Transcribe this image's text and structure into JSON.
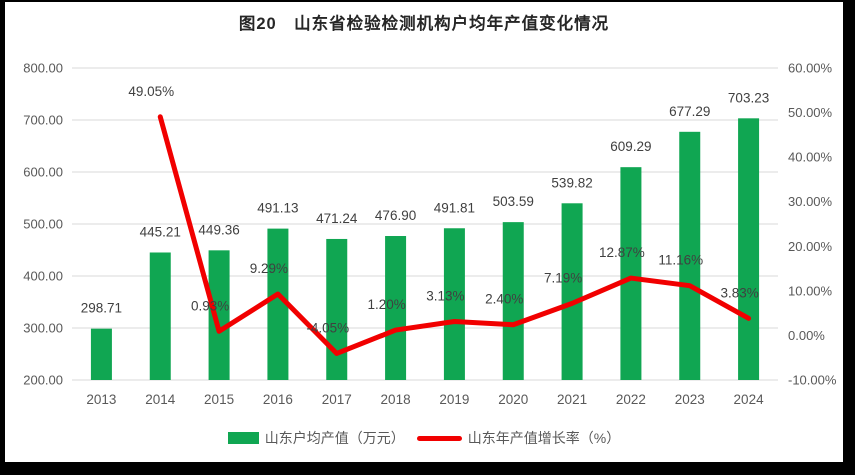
{
  "title": "图20　山东省检验检测机构户均年产值变化情况",
  "colors": {
    "background": "#000000",
    "panel": "#ffffff",
    "bar": "#10a652",
    "line": "#f10000",
    "grid": "#d9d9d9",
    "axis_text": "#595959",
    "data_label_text": "#404040",
    "title_text": "#262626"
  },
  "chart_data": {
    "type": "bar+line",
    "title": "图20　山东省检验检测机构户均年产值变化情况",
    "categories": [
      "2013",
      "2014",
      "2015",
      "2016",
      "2017",
      "2018",
      "2019",
      "2020",
      "2021",
      "2022",
      "2023",
      "2024"
    ],
    "series": [
      {
        "name": "山东户均产值（万元）",
        "type": "bar",
        "axis": "left",
        "color": "#10a652",
        "values": [
          298.71,
          445.21,
          449.36,
          491.13,
          471.24,
          476.9,
          491.81,
          503.59,
          539.82,
          609.29,
          677.29,
          703.23
        ],
        "labels": [
          "298.71",
          "445.21",
          "449.36",
          "491.13",
          "471.24",
          "476.90",
          "491.81",
          "503.59",
          "539.82",
          "609.29",
          "677.29",
          "703.23"
        ]
      },
      {
        "name": "山东年产值增长率（%）",
        "type": "line",
        "axis": "right",
        "color": "#f10000",
        "values": [
          null,
          49.05,
          0.93,
          9.29,
          -4.05,
          1.2,
          3.13,
          2.4,
          7.19,
          12.87,
          11.16,
          3.83
        ],
        "labels": [
          null,
          "49.05%",
          "0.93%",
          "9.29%",
          "-4.05%",
          "1.20%",
          "3.13%",
          "2.40%",
          "7.19%",
          "12.87%",
          "11.16%",
          "3.83%"
        ]
      }
    ],
    "left_axis": {
      "min": 200,
      "max": 800,
      "step": 100,
      "tick_labels": [
        "200.00",
        "300.00",
        "400.00",
        "500.00",
        "600.00",
        "700.00",
        "800.00"
      ]
    },
    "right_axis": {
      "min": -10,
      "max": 60,
      "step": 10,
      "tick_labels": [
        "-10.00%",
        "0.00%",
        "10.00%",
        "20.00%",
        "30.00%",
        "40.00%",
        "50.00%",
        "60.00%"
      ]
    },
    "grid": true,
    "legend_position": "bottom"
  }
}
